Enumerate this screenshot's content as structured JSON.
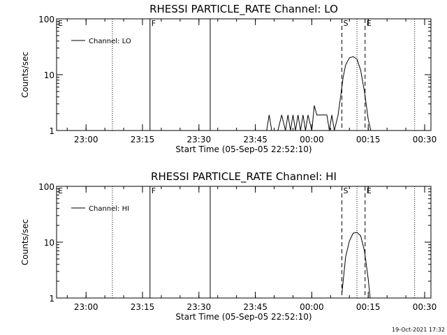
{
  "chart_data": [
    {
      "type": "line",
      "title": "RHESSI PARTICLE_RATE Channel: LO",
      "xlabel": "Start Time (05-Sep-05 22:52:10)",
      "ylabel": "Counts/sec",
      "yscale": "log",
      "ylim": [
        1,
        100
      ],
      "xlim": [
        "22:52:10",
        "00:31:40"
      ],
      "x_ticks": [
        "23:00",
        "23:15",
        "23:30",
        "23:45",
        "00:00",
        "00:15",
        "00:30"
      ],
      "y_ticks": [
        "1",
        "10",
        "100"
      ],
      "legend": {
        "entries": [
          "Channel: LO"
        ],
        "position": "top-left"
      },
      "series": [
        {
          "name": "Channel: LO",
          "x": [
            "23:48",
            "23:48:40",
            "23:49:20",
            "23:51",
            "23:52",
            "23:53",
            "23:53:40",
            "23:54:20",
            "23:55",
            "23:55:40",
            "23:56:20",
            "23:57",
            "23:57:40",
            "23:58:20",
            "23:59",
            "00:00",
            "00:00:40",
            "00:01:20",
            "00:02",
            "00:02:40",
            "00:03:20",
            "00:04",
            "00:04:40",
            "00:05:20",
            "00:06",
            "00:07",
            "00:08",
            "00:08:20",
            "00:09",
            "00:10",
            "00:11",
            "00:12",
            "00:13",
            "00:14",
            "00:15",
            "00:15:40"
          ],
          "y": [
            1,
            1.9,
            1,
            1,
            1.9,
            1,
            1.9,
            1,
            1.9,
            1,
            1.9,
            1,
            1.9,
            1,
            1.9,
            1,
            2.8,
            1.9,
            1.9,
            1.9,
            1.9,
            1.9,
            1,
            1.9,
            1,
            1.9,
            6,
            9,
            15,
            20,
            21,
            19,
            12,
            5,
            1.6,
            1
          ]
        }
      ],
      "markers": [
        {
          "label": "E",
          "time": "22:52:10",
          "style": "dotted"
        },
        {
          "label": "",
          "time": "23:07",
          "style": "dotted"
        },
        {
          "label": "F",
          "time": "23:17",
          "style": "solid"
        },
        {
          "label": "",
          "time": "23:33",
          "style": "solid"
        },
        {
          "label": "S",
          "time": "00:08",
          "style": "dashed"
        },
        {
          "label": "",
          "time": "00:12",
          "style": "dotted"
        },
        {
          "label": "E",
          "time": "00:14:10",
          "style": "dashed"
        },
        {
          "label": "",
          "time": "00:27:20",
          "style": "dotted"
        }
      ]
    },
    {
      "type": "line",
      "title": "RHESSI PARTICLE_RATE Channel: HI",
      "xlabel": "Start Time (05-Sep-05 22:52:10)",
      "ylabel": "Counts/sec",
      "yscale": "log",
      "ylim": [
        1,
        100
      ],
      "xlim": [
        "22:52:10",
        "00:31:40"
      ],
      "x_ticks": [
        "23:00",
        "23:15",
        "23:30",
        "23:45",
        "00:00",
        "00:15",
        "00:30"
      ],
      "y_ticks": [
        "1",
        "10",
        "100"
      ],
      "legend": {
        "entries": [
          "Channel: HI"
        ],
        "position": "top-left"
      },
      "series": [
        {
          "name": "Channel: HI",
          "x": [
            "00:08",
            "00:09",
            "00:10",
            "00:11",
            "00:12",
            "00:13",
            "00:14",
            "00:15",
            "00:15:30"
          ],
          "y": [
            1.2,
            5.5,
            10.5,
            14.5,
            15,
            13,
            7,
            2.2,
            1
          ]
        }
      ],
      "markers": [
        {
          "label": "E",
          "time": "22:52:10",
          "style": "dotted"
        },
        {
          "label": "",
          "time": "23:07",
          "style": "dotted"
        },
        {
          "label": "F",
          "time": "23:17",
          "style": "solid"
        },
        {
          "label": "",
          "time": "23:33",
          "style": "solid"
        },
        {
          "label": "S",
          "time": "00:08",
          "style": "dashed"
        },
        {
          "label": "",
          "time": "00:12",
          "style": "dotted"
        },
        {
          "label": "E",
          "time": "00:14:10",
          "style": "dashed"
        },
        {
          "label": "",
          "time": "00:27:20",
          "style": "dotted"
        }
      ]
    }
  ],
  "footer": {
    "timestamp": "19-Oct-2021 17:32"
  }
}
